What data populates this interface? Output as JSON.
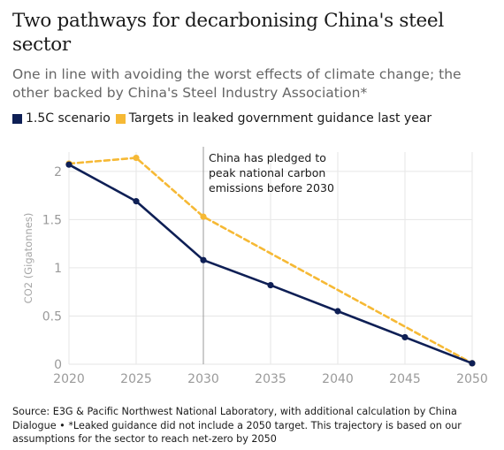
{
  "colors": {
    "scenario": "#0e1f55",
    "targets": "#f6b935",
    "grid": "#e6e6e6",
    "axis_text": "#9a9a9a",
    "annotation_line": "#999999"
  },
  "chart_data": {
    "type": "line",
    "title": "Two pathways for decarbonising China's steel sector",
    "subtitle": "One in line with avoiding the worst effects of climate change; the other backed by China's Steel Industry Association*",
    "ylabel": "CO2 (Gigatonnes)",
    "xlabel": "",
    "x": [
      2020,
      2025,
      2030,
      2035,
      2040,
      2045,
      2050
    ],
    "xlim": [
      2020,
      2050
    ],
    "ylim": [
      0,
      2.2
    ],
    "xticks": [
      2020,
      2025,
      2030,
      2035,
      2040,
      2045,
      2050
    ],
    "xtick_labels": [
      "2020",
      "2025",
      "2030",
      "2035",
      "2040",
      "2045",
      "2050"
    ],
    "yticks": [
      0,
      0.5,
      1,
      1.5,
      2
    ],
    "ytick_labels": [
      "0",
      "0.5",
      "1",
      "1.5",
      "2"
    ],
    "grid": true,
    "legend_position": "top-left",
    "series": [
      {
        "name": "1.5C scenario",
        "style": "solid",
        "x": [
          2020,
          2025,
          2030,
          2035,
          2040,
          2045,
          2050
        ],
        "y": [
          2.07,
          1.69,
          1.08,
          0.82,
          0.55,
          0.28,
          0.01
        ],
        "markers": true
      },
      {
        "name": "Targets in leaked government guidance last year",
        "style": "dashed",
        "x": [
          2020,
          2025,
          2030,
          2050
        ],
        "y": [
          2.08,
          2.14,
          1.53,
          0.01
        ],
        "markers": true
      }
    ],
    "annotations": [
      {
        "x": 2030,
        "lines": [
          "China has pledged to",
          "peak national carbon",
          "emissions before 2030"
        ]
      }
    ]
  },
  "footer": {
    "text": "Source: E3G & Pacific Northwest National Laboratory, with additional calculation by China Dialogue • *Leaked guidance did not include a 2050 target. This trajectory is based on our assumptions for the sector to reach net-zero by 2050"
  }
}
